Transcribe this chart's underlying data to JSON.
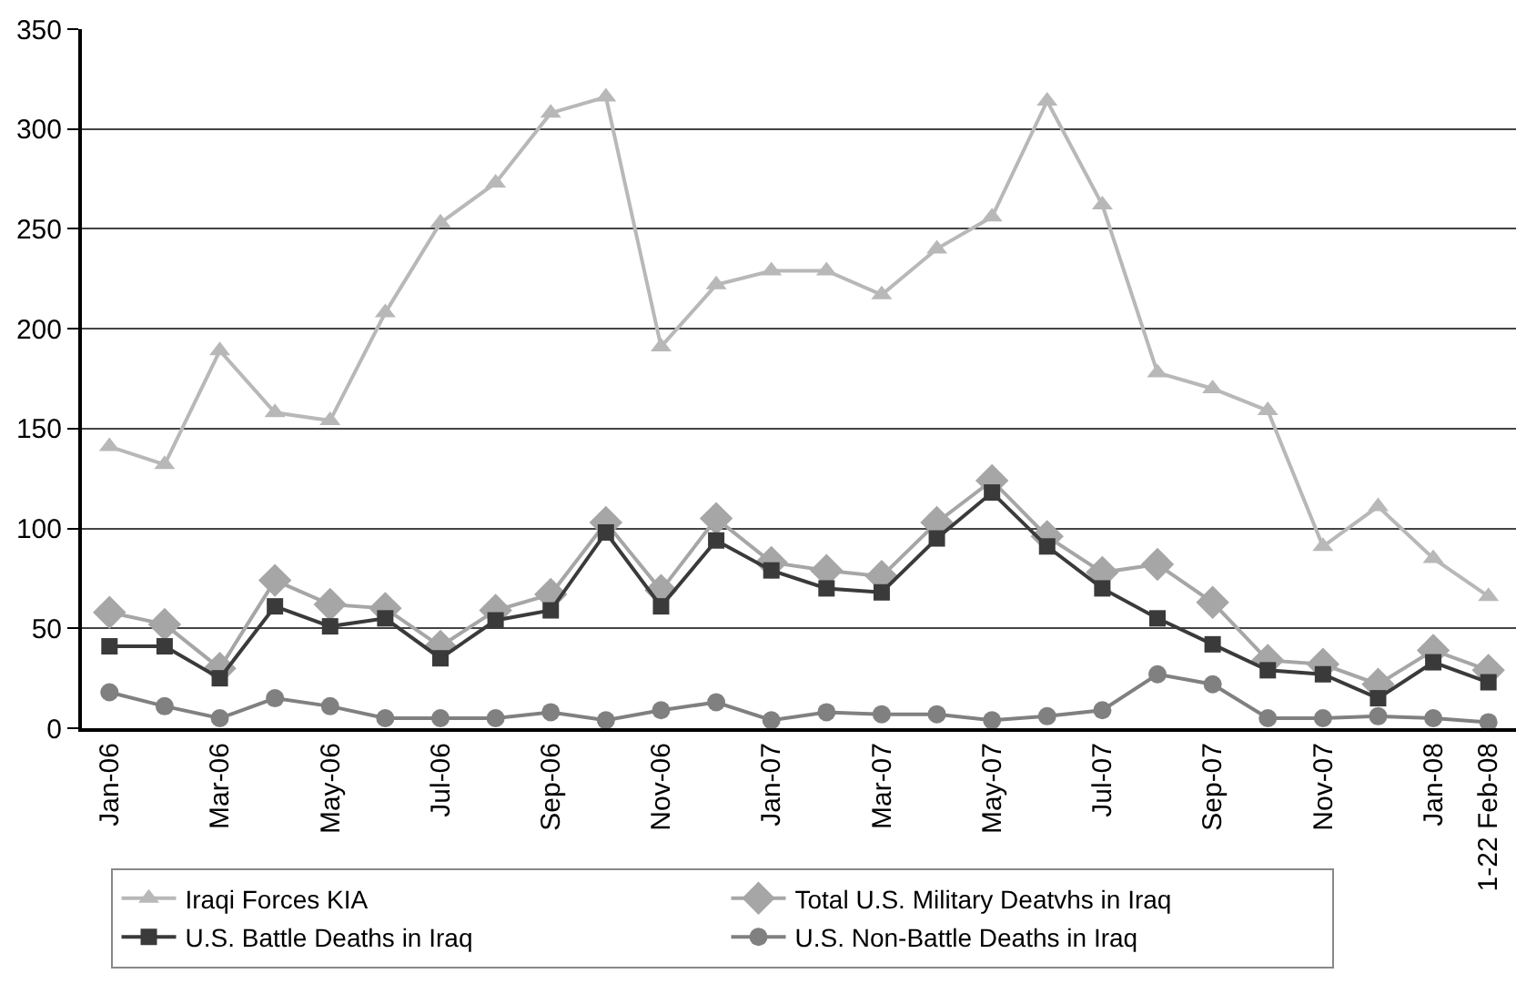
{
  "chart_data": {
    "type": "line",
    "categories": [
      "Jan-06",
      null,
      "Mar-06",
      null,
      "May-06",
      null,
      "Jul-06",
      null,
      "Sep-06",
      null,
      "Nov-06",
      null,
      "Jan-07",
      null,
      "Mar-07",
      null,
      "May-07",
      null,
      "Jul-07",
      null,
      "Sep-07",
      null,
      "Nov-07",
      null,
      "Jan-08",
      "1-22 Feb-08"
    ],
    "series": [
      {
        "name": "Iraqi Forces KIA",
        "color": "#b8b8b8",
        "marker": "triangle",
        "values": [
          141,
          132,
          189,
          158,
          154,
          208,
          253,
          273,
          308,
          316,
          191,
          222,
          229,
          229,
          217,
          240,
          256,
          314,
          262,
          178,
          170,
          159,
          91,
          111,
          85,
          66
        ]
      },
      {
        "name": "Total U.S. Military Deatvhs in Iraq",
        "color": "#a6a6a6",
        "marker": "diamond",
        "values": [
          58,
          52,
          30,
          74,
          62,
          60,
          41,
          59,
          67,
          103,
          69,
          105,
          83,
          79,
          76,
          103,
          124,
          96,
          78,
          82,
          63,
          34,
          32,
          22,
          39,
          29
        ]
      },
      {
        "name": "U.S. Battle Deaths in Iraq",
        "color": "#3a3a3a",
        "marker": "square",
        "values": [
          41,
          41,
          25,
          61,
          51,
          55,
          35,
          54,
          59,
          98,
          61,
          94,
          79,
          70,
          68,
          95,
          118,
          91,
          70,
          55,
          42,
          29,
          27,
          15,
          33,
          23
        ]
      },
      {
        "name": "U.S. Non-Battle Deaths in Iraq",
        "color": "#808080",
        "marker": "circle",
        "values": [
          18,
          11,
          5,
          15,
          11,
          5,
          5,
          5,
          8,
          4,
          9,
          13,
          4,
          8,
          7,
          7,
          4,
          6,
          9,
          27,
          22,
          5,
          5,
          6,
          5,
          3
        ]
      }
    ],
    "ylim": [
      0,
      350
    ],
    "yticks": [
      0,
      50,
      100,
      150,
      200,
      250,
      300,
      350
    ],
    "grid": "y",
    "legend": "bottom",
    "line_style": "solid"
  }
}
